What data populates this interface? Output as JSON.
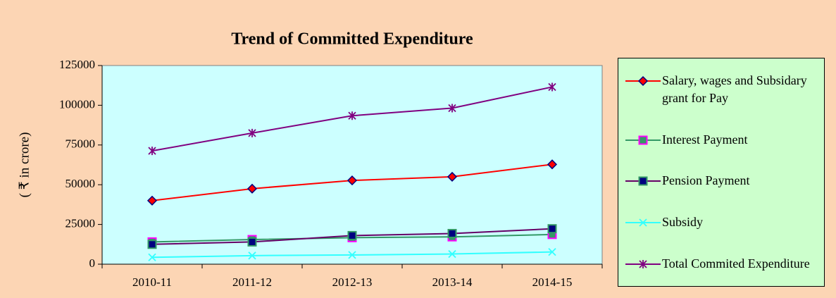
{
  "chart_data": {
    "type": "line",
    "title": "Trend of Committed Expenditure",
    "y_label": "( ₹ in crore)",
    "categories": [
      "2010-11",
      "2011-12",
      "2012-13",
      "2013-14",
      "2014-15"
    ],
    "series": [
      {
        "name": "Salary, wages and Subsidary grant for Pay",
        "color": "#ff0000",
        "marker": "diamond",
        "marker_fill": "#ff0000",
        "marker_edge": "#000080",
        "values": [
          40000,
          47500,
          52700,
          55000,
          62800
        ]
      },
      {
        "name": "Interest Payment",
        "color": "#339966",
        "marker": "square",
        "marker_fill": "#339966",
        "marker_edge": "#ff00ff",
        "values": [
          14000,
          15500,
          16700,
          17200,
          18700
        ]
      },
      {
        "name": "Pension Payment",
        "color": "#660066",
        "marker": "square",
        "marker_fill": "#000080",
        "marker_edge": "#339966",
        "values": [
          12500,
          14000,
          18000,
          19300,
          22300
        ]
      },
      {
        "name": "Subsidy",
        "color": "#33ffff",
        "marker": "x",
        "marker_fill": "#33ffff",
        "marker_edge": "#33ffff",
        "values": [
          4300,
          5400,
          5800,
          6400,
          7700
        ]
      },
      {
        "name": "Total Commited Expenditure",
        "color": "#800080",
        "marker": "star",
        "marker_fill": "#800080",
        "marker_edge": "#800080",
        "values": [
          71300,
          82500,
          93400,
          98200,
          111500
        ]
      }
    ],
    "ylim": [
      0,
      125000
    ],
    "yticks": [
      0,
      25000,
      50000,
      75000,
      100000,
      125000
    ]
  }
}
